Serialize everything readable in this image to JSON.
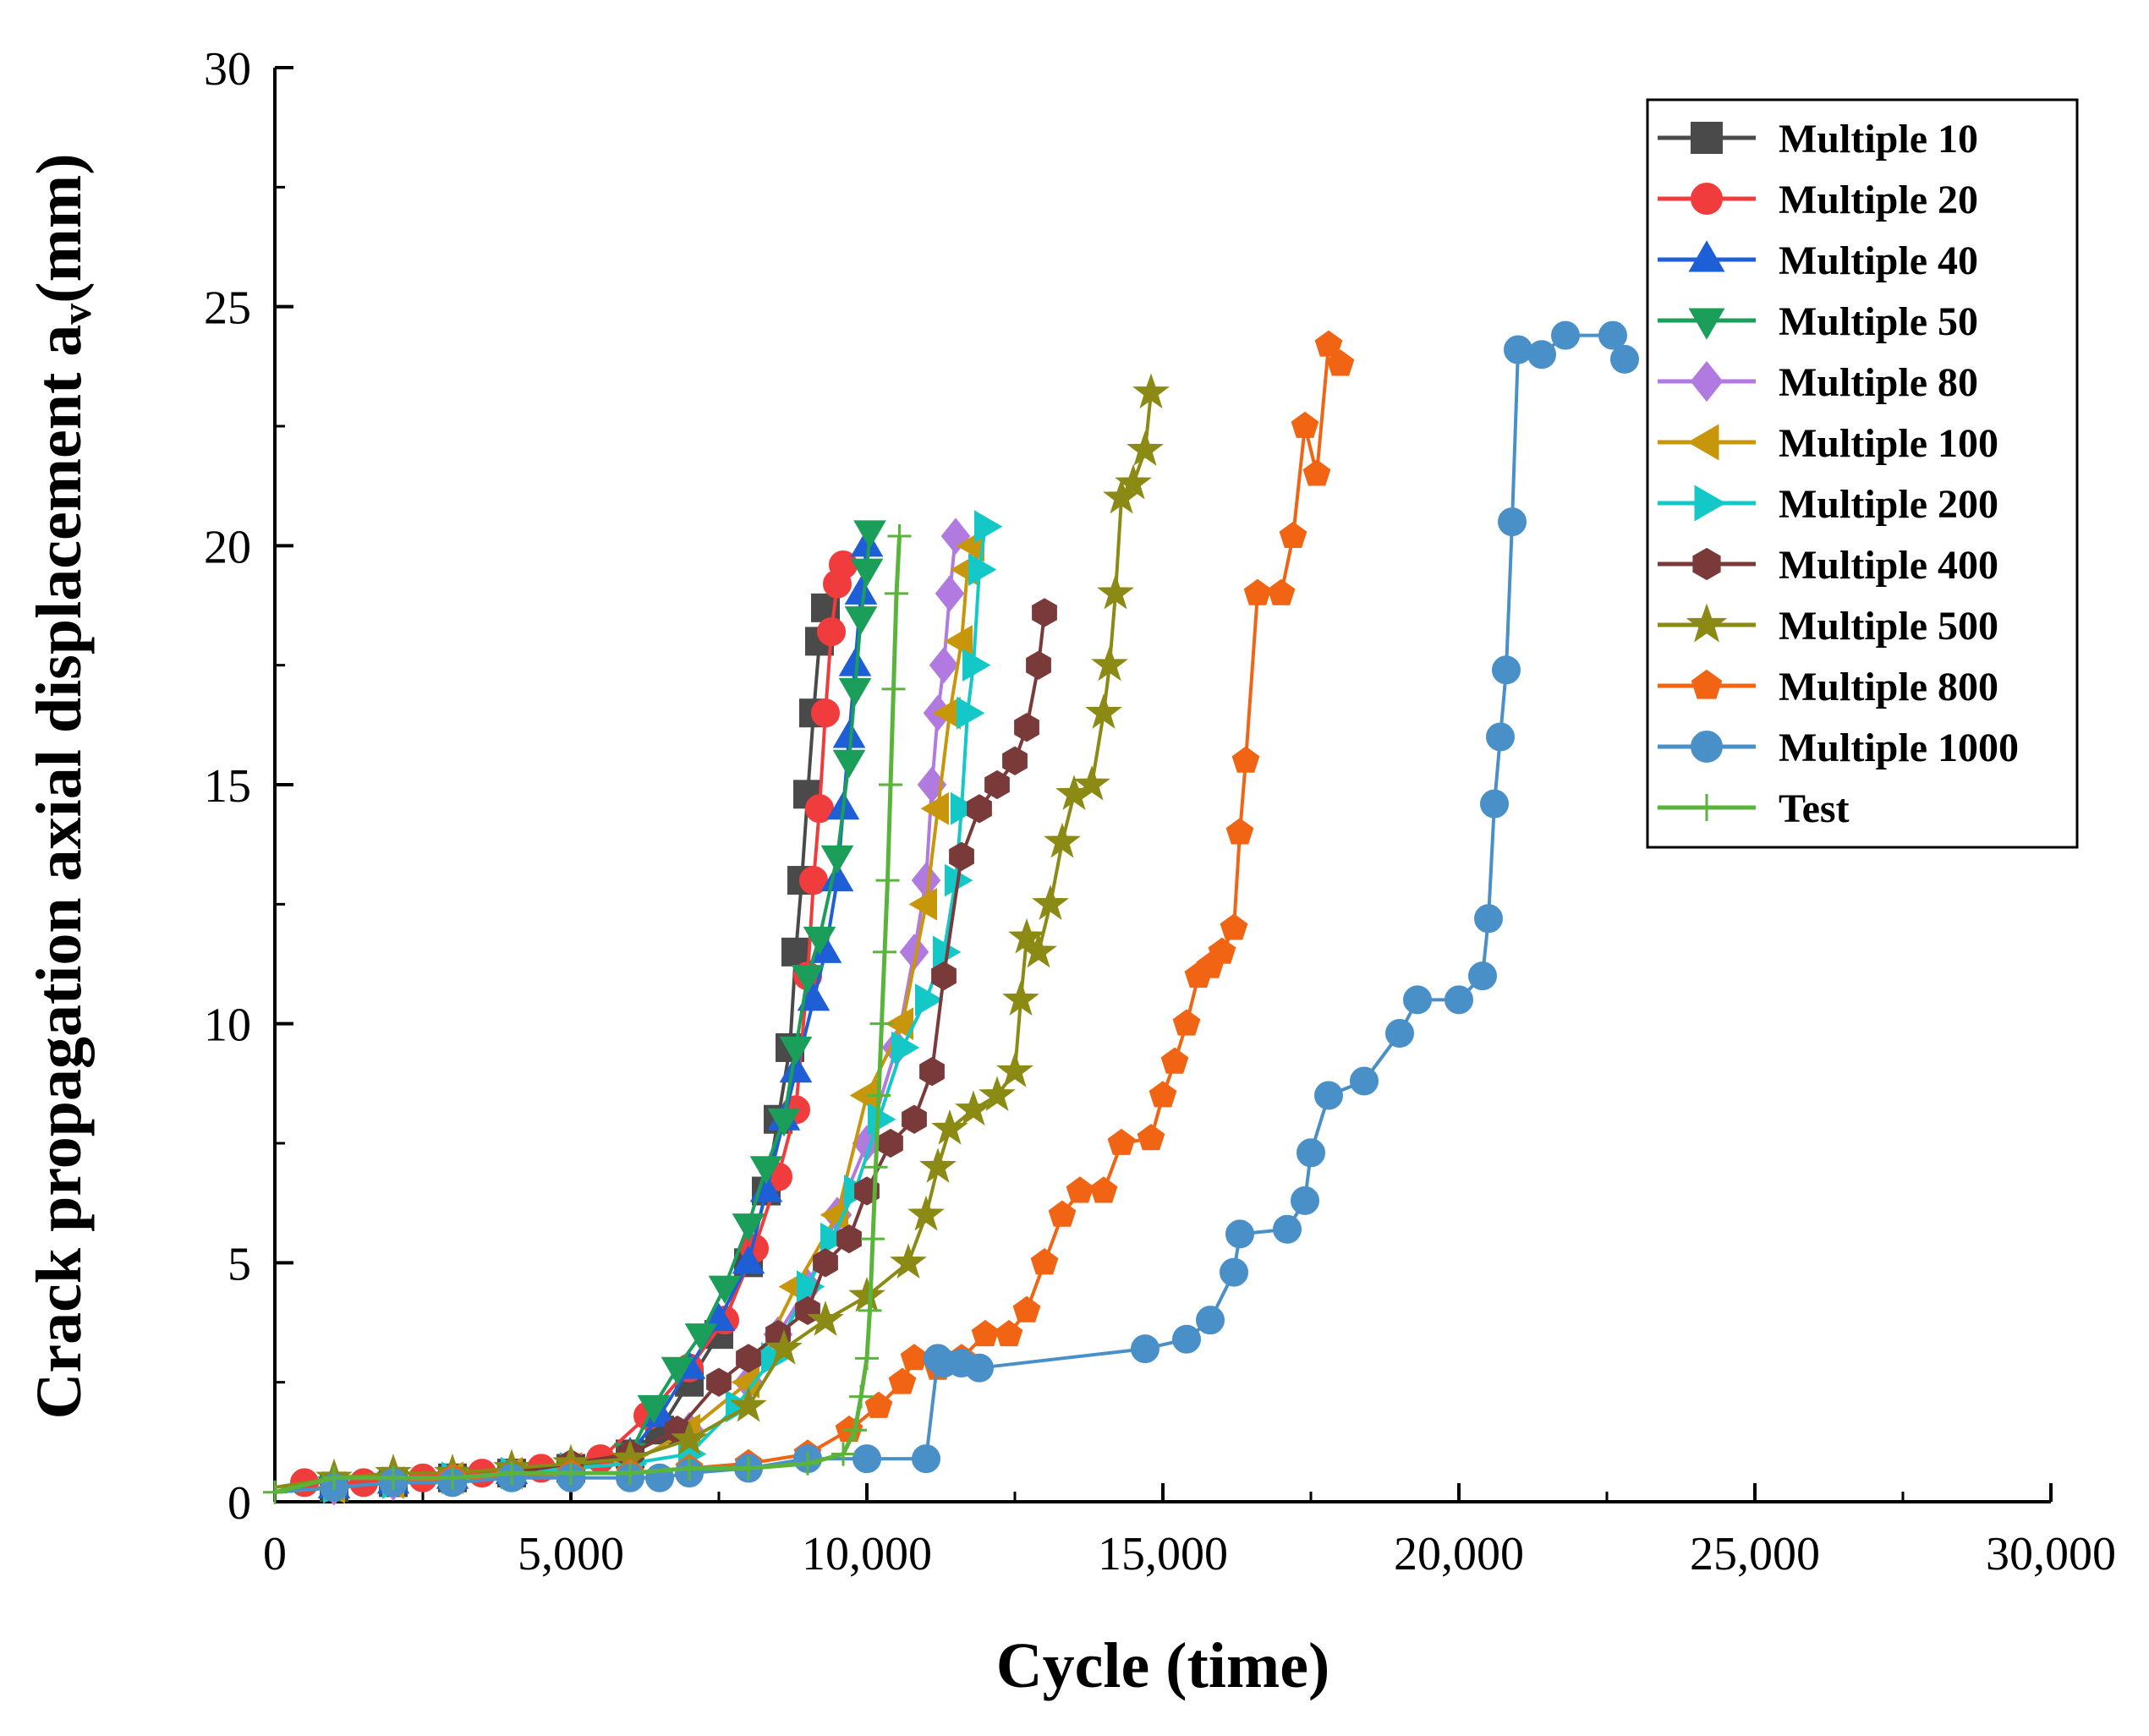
{
  "chart_data": {
    "type": "line",
    "title": "",
    "xlabel": "Cycle (time)",
    "ylabel_main": "Crack propagation axial displacement a",
    "ylabel_sub": "v",
    "ylabel_tail": "(mm)",
    "xlim": [
      0,
      30000
    ],
    "ylim": [
      0,
      30
    ],
    "xticks": [
      0,
      5000,
      10000,
      15000,
      20000,
      25000,
      30000
    ],
    "xtick_labels": [
      "0",
      "5,000",
      "10,000",
      "15,000",
      "20,000",
      "25,000",
      "30,000"
    ],
    "yticks": [
      0,
      5,
      10,
      15,
      20,
      25,
      30
    ],
    "ytick_labels": [
      "0",
      "5",
      "10",
      "15",
      "20",
      "25",
      "30"
    ],
    "grid": false,
    "legend_position": "top-right",
    "series": [
      {
        "name": "Multiple 10",
        "color": "#4a4a4a",
        "marker": "square",
        "x": [
          0,
          1000,
          2000,
          3000,
          4000,
          5000,
          6000,
          6500,
          7000,
          7500,
          8000,
          8300,
          8500,
          8700,
          8800,
          8900,
          9000,
          9100,
          9200,
          9300
        ],
        "y": [
          0.2,
          0.3,
          0.4,
          0.5,
          0.6,
          0.7,
          1.0,
          1.5,
          2.5,
          3.5,
          5.0,
          6.5,
          8.0,
          9.5,
          11.5,
          13.0,
          14.8,
          16.5,
          18.0,
          18.7
        ]
      },
      {
        "name": "Multiple 20",
        "color": "#f03c3c",
        "marker": "circle",
        "x": [
          0,
          500,
          1500,
          2500,
          3500,
          4500,
          5500,
          6300,
          7000,
          7600,
          8100,
          8500,
          8800,
          9000,
          9100,
          9200,
          9300,
          9400,
          9500,
          9600
        ],
        "y": [
          0.2,
          0.4,
          0.4,
          0.5,
          0.6,
          0.7,
          0.9,
          1.8,
          2.8,
          3.8,
          5.3,
          6.8,
          8.2,
          11.0,
          13.0,
          14.5,
          16.5,
          18.2,
          19.2,
          19.6
        ]
      },
      {
        "name": "Multiple 40",
        "color": "#1f5fd6",
        "marker": "triangle-up",
        "x": [
          0,
          1000,
          2000,
          3000,
          4000,
          5000,
          6000,
          6500,
          7000,
          7500,
          8000,
          8300,
          8600,
          8800,
          9100,
          9300,
          9500,
          9600,
          9700,
          9800,
          9900,
          10000
        ],
        "y": [
          0.2,
          0.3,
          0.4,
          0.5,
          0.6,
          0.7,
          1.0,
          1.8,
          2.8,
          3.8,
          5.0,
          6.5,
          8.0,
          9.0,
          10.5,
          11.5,
          13.0,
          14.5,
          16.0,
          17.5,
          19.0,
          20.0
        ]
      },
      {
        "name": "Multiple 50",
        "color": "#1a9e5a",
        "marker": "triangle-down",
        "x": [
          0,
          1000,
          2000,
          3000,
          4000,
          5000,
          6000,
          6400,
          6800,
          7200,
          7600,
          8000,
          8300,
          8600,
          8800,
          9000,
          9200,
          9500,
          9700,
          9800,
          9900,
          10000,
          10050
        ],
        "y": [
          0.2,
          0.3,
          0.4,
          0.5,
          0.6,
          0.7,
          1.0,
          2.0,
          2.8,
          3.5,
          4.5,
          5.8,
          7.0,
          8.0,
          9.5,
          11.0,
          11.8,
          13.5,
          15.5,
          17.0,
          18.5,
          19.5,
          20.3
        ]
      },
      {
        "name": "Multiple 80",
        "color": "#b07ae0",
        "marker": "diamond",
        "x": [
          0,
          1000,
          2000,
          3000,
          4000,
          5000,
          6000,
          7000,
          8000,
          8500,
          9000,
          9500,
          10000,
          10500,
          10800,
          11000,
          11100,
          11200,
          11300,
          11400,
          11500
        ],
        "y": [
          0.2,
          0.3,
          0.4,
          0.5,
          0.6,
          0.7,
          0.8,
          1.5,
          2.5,
          3.5,
          4.5,
          6.0,
          7.5,
          9.5,
          11.5,
          13.0,
          15.0,
          16.5,
          17.5,
          19.0,
          20.2
        ]
      },
      {
        "name": "Multiple 100",
        "color": "#c8960a",
        "marker": "triangle-left",
        "x": [
          0,
          1000,
          2000,
          3000,
          4000,
          5000,
          6000,
          7000,
          8000,
          8800,
          9500,
          10000,
          10600,
          11000,
          11200,
          11400,
          11600,
          11700,
          11800
        ],
        "y": [
          0.2,
          0.3,
          0.4,
          0.5,
          0.6,
          0.7,
          0.8,
          1.5,
          2.5,
          4.5,
          6.0,
          8.5,
          10.0,
          12.5,
          14.5,
          16.5,
          18.0,
          19.5,
          20.0
        ]
      },
      {
        "name": "Multiple 200",
        "color": "#14c8c8",
        "marker": "triangle-right",
        "x": [
          0,
          1000,
          2000,
          3000,
          4000,
          5000,
          6000,
          7000,
          7800,
          8400,
          9000,
          9400,
          9800,
          10200,
          10600,
          11000,
          11300,
          11500,
          11600,
          11700,
          11800,
          11900,
          12000
        ],
        "y": [
          0.2,
          0.3,
          0.4,
          0.5,
          0.6,
          0.7,
          0.8,
          1.0,
          2.0,
          3.0,
          4.5,
          5.5,
          6.5,
          8.0,
          9.5,
          10.5,
          11.5,
          13.0,
          14.5,
          16.5,
          17.5,
          19.5,
          20.4
        ]
      },
      {
        "name": "Multiple 400",
        "color": "#7a3a3a",
        "marker": "hexagon",
        "x": [
          0,
          1000,
          2000,
          3000,
          4000,
          5000,
          6000,
          6800,
          7500,
          8000,
          8500,
          9000,
          9300,
          9700,
          10000,
          10400,
          10800,
          11100,
          11300,
          11600,
          11900,
          12200,
          12500,
          12700,
          12900,
          13000
        ],
        "y": [
          0.2,
          0.3,
          0.4,
          0.5,
          0.6,
          0.8,
          1.0,
          1.5,
          2.5,
          3.0,
          3.5,
          4.0,
          5.0,
          5.5,
          6.5,
          7.5,
          8.0,
          9.0,
          11.0,
          13.5,
          14.5,
          15.0,
          15.5,
          16.2,
          17.5,
          18.6
        ]
      },
      {
        "name": "Multiple 500",
        "color": "#8a8a14",
        "marker": "star",
        "x": [
          0,
          1000,
          2000,
          3000,
          4000,
          5000,
          6000,
          7000,
          8000,
          8600,
          9300,
          10000,
          10700,
          11000,
          11200,
          11400,
          11800,
          12200,
          12500,
          12600,
          12700,
          12900,
          13100,
          13300,
          13500,
          13800,
          14000,
          14100,
          14200,
          14300,
          14500,
          14700,
          14800
        ],
        "y": [
          0.3,
          0.5,
          0.6,
          0.6,
          0.7,
          0.8,
          0.9,
          1.3,
          2.0,
          3.2,
          3.8,
          4.3,
          5.0,
          6.0,
          7.0,
          7.8,
          8.2,
          8.5,
          9.0,
          10.5,
          11.8,
          11.5,
          12.5,
          13.8,
          14.8,
          15.0,
          16.5,
          17.5,
          19.0,
          21.0,
          21.3,
          22.0,
          23.2
        ]
      },
      {
        "name": "Multiple 800",
        "color": "#f06414",
        "marker": "pentagon",
        "x": [
          0,
          1000,
          2000,
          3000,
          4000,
          5000,
          6000,
          7000,
          8000,
          9000,
          9700,
          10200,
          10600,
          10800,
          11200,
          11600,
          12000,
          12400,
          12700,
          13000,
          13300,
          13600,
          14000,
          14300,
          14800,
          15000,
          15200,
          15400,
          15600,
          15800,
          16000,
          16200,
          16300,
          16400,
          16600,
          17000,
          17200,
          17400,
          17600,
          17800,
          18000
        ],
        "y": [
          0.2,
          0.3,
          0.4,
          0.5,
          0.5,
          0.6,
          0.6,
          0.7,
          0.8,
          1.0,
          1.5,
          2.0,
          2.5,
          3.0,
          2.8,
          3.0,
          3.5,
          3.5,
          4.0,
          5.0,
          6.0,
          6.5,
          6.5,
          7.5,
          7.6,
          8.5,
          9.2,
          10.0,
          11.0,
          11.2,
          11.5,
          12.0,
          14.0,
          15.5,
          19.0,
          19.0,
          20.2,
          22.5,
          21.5,
          24.2,
          23.8
        ]
      },
      {
        "name": "Multiple 1000",
        "color": "#4a90c8",
        "marker": "circle",
        "x": [
          0,
          1000,
          2000,
          3000,
          4000,
          5000,
          6000,
          6500,
          7000,
          8000,
          9000,
          10000,
          11000,
          11200,
          11300,
          11600,
          11900,
          14700,
          15400,
          15800,
          16200,
          16300,
          17100,
          17400,
          17500,
          17800,
          18400,
          19000,
          19300,
          20000,
          20400,
          20500,
          20600,
          20700,
          20800,
          20900,
          21000,
          21400,
          21800,
          22600,
          22800
        ],
        "y": [
          0.2,
          0.3,
          0.4,
          0.4,
          0.5,
          0.5,
          0.5,
          0.5,
          0.6,
          0.7,
          0.9,
          0.9,
          0.9,
          3.0,
          2.9,
          2.9,
          2.8,
          3.2,
          3.4,
          3.8,
          4.8,
          5.6,
          5.7,
          6.3,
          7.3,
          8.5,
          8.8,
          9.8,
          10.5,
          10.5,
          11.0,
          12.2,
          14.6,
          16.0,
          17.4,
          20.5,
          24.1,
          24.0,
          24.4,
          24.4,
          23.9
        ]
      },
      {
        "name": "Test",
        "color": "#5ab43c",
        "marker": "plus",
        "x": [
          0,
          1000,
          2000,
          3000,
          4000,
          5000,
          6000,
          7000,
          8000,
          9000,
          9600,
          9800,
          9900,
          10000,
          10050,
          10100,
          10150,
          10200,
          10250,
          10300,
          10350,
          10400,
          10450,
          10500,
          10550
        ],
        "y": [
          0.2,
          0.5,
          0.5,
          0.5,
          0.6,
          0.6,
          0.6,
          0.7,
          0.7,
          0.8,
          1.0,
          1.5,
          2.2,
          3.0,
          4.0,
          5.5,
          7.0,
          8.5,
          10.0,
          11.5,
          13.0,
          15.0,
          17.0,
          19.0,
          20.2
        ]
      }
    ]
  }
}
